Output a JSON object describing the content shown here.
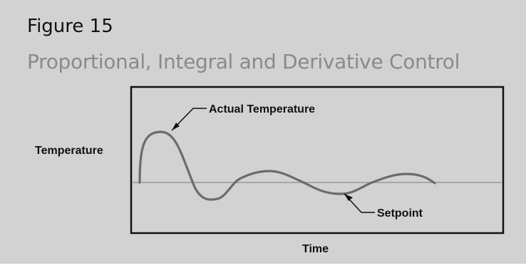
{
  "figure": {
    "number": "Figure 15",
    "title": "Proportional, Integral and Derivative Control"
  },
  "diagram": {
    "ylabel": "Temperature",
    "xlabel": "Time",
    "annotations": {
      "actual": "Actual Temperature",
      "setpoint": "Setpoint"
    },
    "colors": {
      "background": "#d2d2d3",
      "frame": "#111111",
      "curve": "#6b6b6b",
      "setpoint_line": "#a7a7a7"
    }
  }
}
